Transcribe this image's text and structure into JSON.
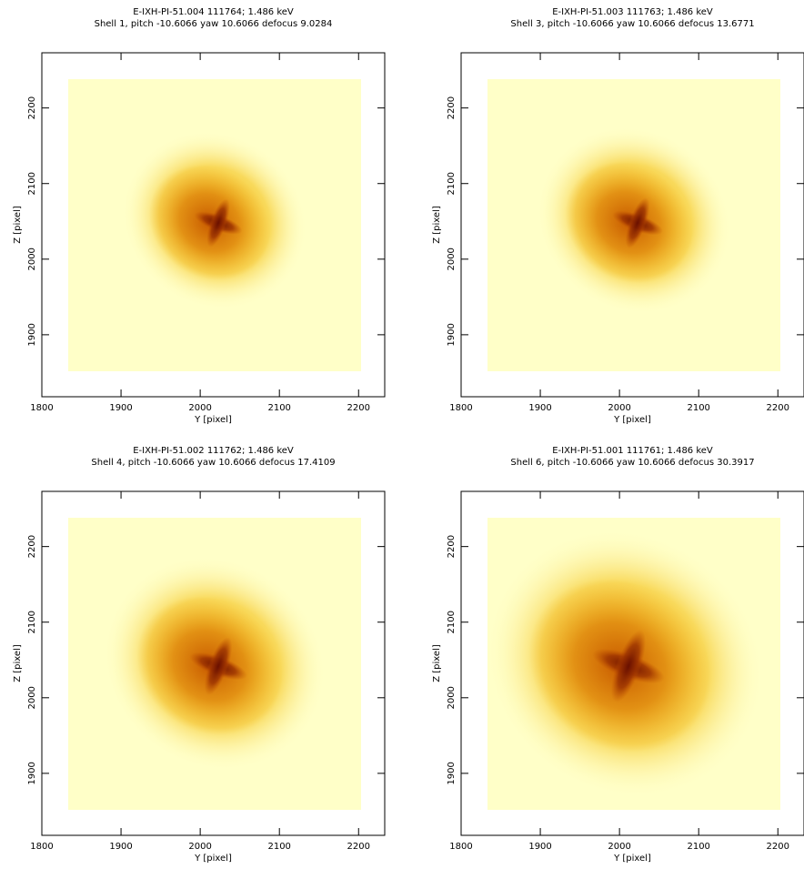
{
  "chart_data": [
    {
      "type": "image",
      "title": "E-IXH-PI-51.004 111764; 1.486 keV",
      "subtitle": "Shell 1, pitch -10.6066 yaw 10.6066 defocus 9.0284",
      "xlabel": "Y [pixel]",
      "ylabel": "Z [pixel]",
      "xlim": [
        1800,
        2233
      ],
      "ylim": [
        1818,
        2273
      ],
      "xticks": [
        1800,
        1900,
        2000,
        2100,
        2200
      ],
      "yticks": [
        1900,
        2000,
        2100,
        2200
      ]
    },
    {
      "type": "image",
      "title": "E-IXH-PI-51.003 111763; 1.486 keV",
      "subtitle": "Shell 3, pitch -10.6066 yaw 10.6066 defocus 13.6771",
      "xlabel": "Y [pixel]",
      "ylabel": "Z [pixel]",
      "xlim": [
        1800,
        2233
      ],
      "ylim": [
        1818,
        2273
      ],
      "xticks": [
        1800,
        1900,
        2000,
        2100,
        2200
      ],
      "yticks": [
        1900,
        2000,
        2100,
        2200
      ]
    },
    {
      "type": "image",
      "title": "E-IXH-PI-51.002 111762; 1.486 keV",
      "subtitle": "Shell 4, pitch -10.6066 yaw 10.6066 defocus 17.4109",
      "xlabel": "Y [pixel]",
      "ylabel": "Z [pixel]",
      "xlim": [
        1800,
        2233
      ],
      "ylim": [
        1818,
        2273
      ],
      "xticks": [
        1800,
        1900,
        2000,
        2100,
        2200
      ],
      "yticks": [
        1900,
        2000,
        2100,
        2200
      ]
    },
    {
      "type": "image",
      "title": "E-IXH-PI-51.001 111761; 1.486 keV",
      "subtitle": "Shell 6, pitch -10.6066 yaw 10.6066 defocus 30.3917",
      "xlabel": "Y [pixel]",
      "ylabel": "Z [pixel]",
      "xlim": [
        1800,
        2233
      ],
      "ylim": [
        1818,
        2273
      ],
      "xticks": [
        1800,
        1900,
        2000,
        2100,
        2200
      ],
      "yticks": [
        1900,
        2000,
        2100,
        2200
      ]
    }
  ]
}
